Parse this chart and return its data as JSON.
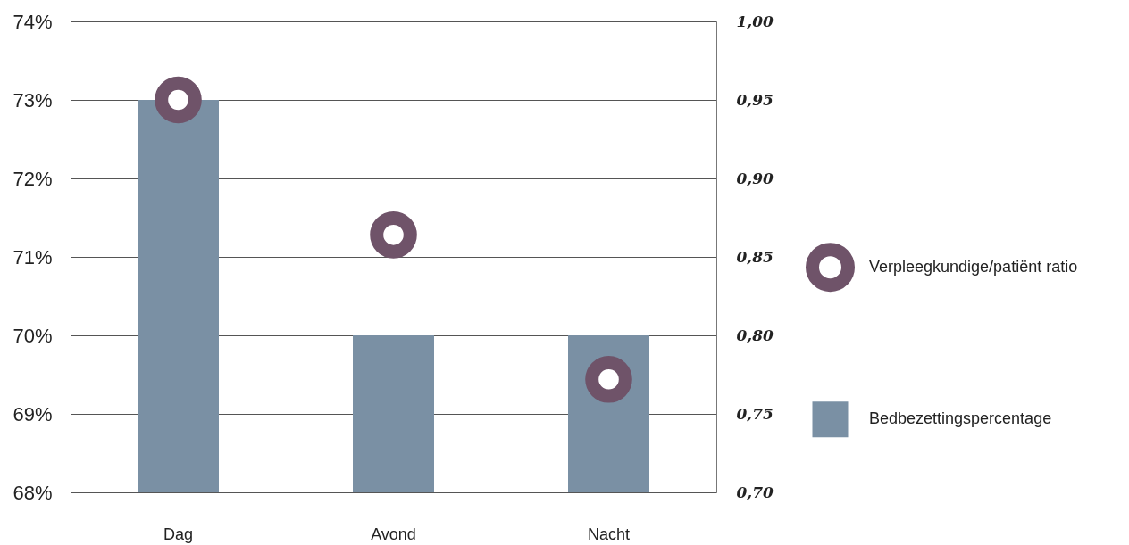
{
  "chart_data": {
    "type": "bar",
    "categories": [
      "Dag",
      "Avond",
      "Nacht"
    ],
    "series": [
      {
        "name": "Verpleegkundige/patiënt ratio",
        "type": "scatter",
        "axis": "y2",
        "marker": "circle",
        "color": "#6f5369",
        "values": [
          0.95,
          0.864,
          0.772
        ]
      },
      {
        "name": "Bedbezettingspercentage",
        "color": "#7a90a4",
        "values": [
          73,
          70,
          70
        ]
      }
    ],
    "ylim": [
      68,
      74
    ],
    "yticks": [
      {
        "value": 68,
        "label": "68%"
      },
      {
        "value": 69,
        "label": "69%"
      },
      {
        "value": 70,
        "label": "70%"
      },
      {
        "value": 71,
        "label": "71%"
      },
      {
        "value": 72,
        "label": "72%"
      },
      {
        "value": 73,
        "label": "73%"
      },
      {
        "value": 74,
        "label": "74%"
      }
    ],
    "y2lim": [
      0.7,
      1.0
    ],
    "y2ticks": [
      {
        "value": 0.7,
        "label": "0,70"
      },
      {
        "value": 0.75,
        "label": "0,75"
      },
      {
        "value": 0.8,
        "label": "0,80"
      },
      {
        "value": 0.85,
        "label": "0,85"
      },
      {
        "value": 0.9,
        "label": "0,90"
      },
      {
        "value": 0.95,
        "label": "0,95"
      },
      {
        "value": 1.0,
        "label": "1,00"
      }
    ],
    "grid": "y",
    "legend": "right"
  }
}
